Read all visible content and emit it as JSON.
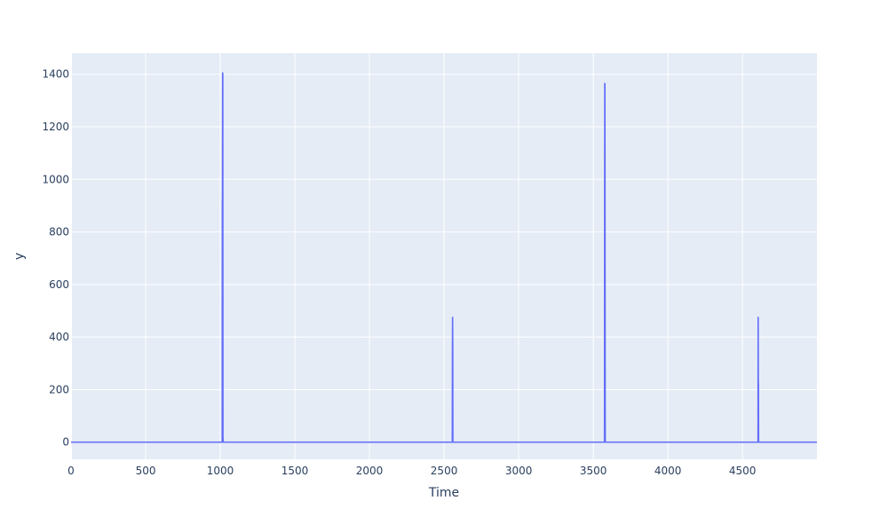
{
  "chart_data": {
    "type": "line",
    "title": "",
    "xlabel": "Time",
    "ylabel": "y",
    "xlim": [
      0,
      4999
    ],
    "ylim": [
      -65,
      1480
    ],
    "x_ticks": [
      0,
      500,
      1000,
      1500,
      2000,
      2500,
      3000,
      3500,
      4000,
      4500
    ],
    "y_ticks": [
      0,
      200,
      400,
      600,
      800,
      1000,
      1200,
      1400
    ],
    "grid": true,
    "colors": {
      "background": "#e5ecf6",
      "grid": "#ffffff",
      "line": "#636efa",
      "text": "#2a3f5f"
    },
    "series": [
      {
        "x": [
          0,
          1013,
          1014,
          1015,
          1016,
          1017,
          1018,
          1019,
          1020,
          1021,
          2555,
          2556,
          2557,
          2558,
          2559,
          2560,
          3575,
          3576,
          3577,
          3578,
          3579,
          3580,
          3581,
          3582,
          3583,
          4604,
          4605,
          4606,
          4607,
          4608,
          4609,
          4999
        ],
        "y": [
          0,
          0,
          910,
          930,
          1405,
          1400,
          20,
          10,
          0,
          0,
          0,
          350,
          475,
          380,
          0,
          0,
          0,
          890,
          1365,
          1360,
          700,
          10,
          0,
          0,
          0,
          0,
          475,
          230,
          220,
          0,
          0,
          0
        ]
      }
    ]
  }
}
